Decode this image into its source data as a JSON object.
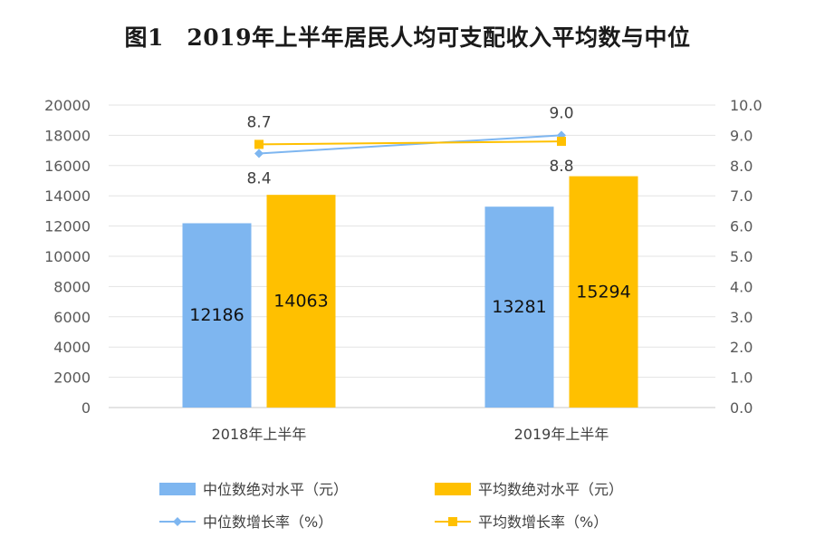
{
  "chart_data": {
    "type": "bar",
    "title": "图1　2019年上半年居民人均可支配收入平均数与中位",
    "categories": [
      "2018年上半年",
      "2019年上半年"
    ],
    "y_left": {
      "min": 0,
      "max": 20000,
      "step": 2000,
      "ticks": [
        "0",
        "2000",
        "4000",
        "6000",
        "8000",
        "10000",
        "12000",
        "14000",
        "16000",
        "18000",
        "20000"
      ]
    },
    "y_right": {
      "min": 0,
      "max": 10,
      "step": 1,
      "ticks": [
        "0.0",
        "1.0",
        "2.0",
        "3.0",
        "4.0",
        "5.0",
        "6.0",
        "7.0",
        "8.0",
        "9.0",
        "10.0"
      ]
    },
    "grid": true,
    "legend_position": "bottom",
    "series": [
      {
        "name": "中位数绝对水平（元）",
        "kind": "bar",
        "axis": "left",
        "color": "#7EB6F0",
        "values": [
          12186,
          13281
        ],
        "labels": [
          "12186",
          "13281"
        ]
      },
      {
        "name": "平均数绝对水平（元）",
        "kind": "bar",
        "axis": "left",
        "color": "#FFC000",
        "values": [
          14063,
          15294
        ],
        "labels": [
          "14063",
          "15294"
        ]
      },
      {
        "name": "中位数增长率（%）",
        "kind": "line",
        "axis": "right",
        "color": "#7EB6F0",
        "marker": "diamond",
        "values": [
          8.4,
          9.0
        ],
        "labels": [
          "8.4",
          "9.0"
        ]
      },
      {
        "name": "平均数增长率（%）",
        "kind": "line",
        "axis": "right",
        "color": "#FFC000",
        "marker": "square",
        "values": [
          8.7,
          8.8
        ],
        "labels": [
          "8.7",
          "8.8"
        ]
      }
    ]
  }
}
